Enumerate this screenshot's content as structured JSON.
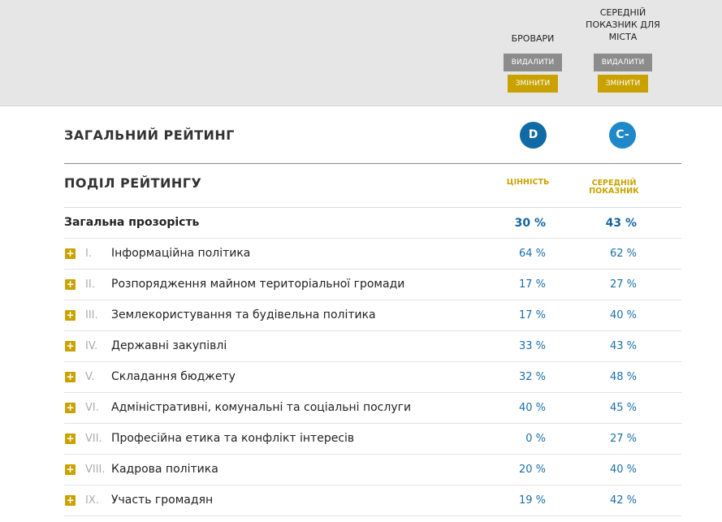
{
  "header": {
    "columns": [
      {
        "title": "БРОВАРИ",
        "delete_label": "ВИДАЛИТИ",
        "edit_label": "ЗМІНИТИ"
      },
      {
        "title_lines": [
          "СЕРЕДНІЙ",
          "ПОКАЗНИК ДЛЯ",
          "МІСТА"
        ],
        "delete_label": "ВИДАЛИТИ",
        "edit_label": "ЗМІНИТИ"
      }
    ]
  },
  "overall": {
    "title": "ЗАГАЛЬНИЙ РЕЙТИНГ",
    "grades": [
      {
        "value": "D",
        "color": "#0f6aa6"
      },
      {
        "value": "C-",
        "color": "#1e88c8"
      }
    ]
  },
  "breakdown": {
    "title": "ПОДІЛ РЕЙТИНГУ",
    "value_header": "ЦІННІСТЬ",
    "avg_header_lines": [
      "СЕРЕДНІЙ",
      "ПОКАЗНИК"
    ]
  },
  "total": {
    "label": "Загальна прозорість",
    "value": "30 %",
    "avg": "43 %"
  },
  "rows": [
    {
      "num": "I.",
      "label": "Інформаційна політика",
      "value": "64 %",
      "avg": "62 %"
    },
    {
      "num": "II.",
      "label": "Розпорядження майном територіальної громади",
      "value": "17 %",
      "avg": "27 %"
    },
    {
      "num": "III.",
      "label": "Землекористування та будівельна політика",
      "value": "17 %",
      "avg": "40 %"
    },
    {
      "num": "IV.",
      "label": "Державні закупівлі",
      "value": "33 %",
      "avg": "43 %"
    },
    {
      "num": "V.",
      "label": "Складання бюджету",
      "value": "32 %",
      "avg": "48 %"
    },
    {
      "num": "VI.",
      "label": "Адміністративні, комунальні та соціальні послуги",
      "value": "40 %",
      "avg": "45 %"
    },
    {
      "num": "VII.",
      "label": "Професійна етика та конфлікт інтересів",
      "value": "0 %",
      "avg": "27 %"
    },
    {
      "num": "VIII.",
      "label": "Кадрова політика",
      "value": "20 %",
      "avg": "40 %"
    },
    {
      "num": "IX.",
      "label": "Участь громадян",
      "value": "19 %",
      "avg": "42 %"
    }
  ],
  "icons": {
    "expand": "plus-icon"
  },
  "colors": {
    "accent_gold": "#c9a200",
    "value_blue": "#1b6ea8",
    "delete_gray": "#8c8c8c"
  }
}
